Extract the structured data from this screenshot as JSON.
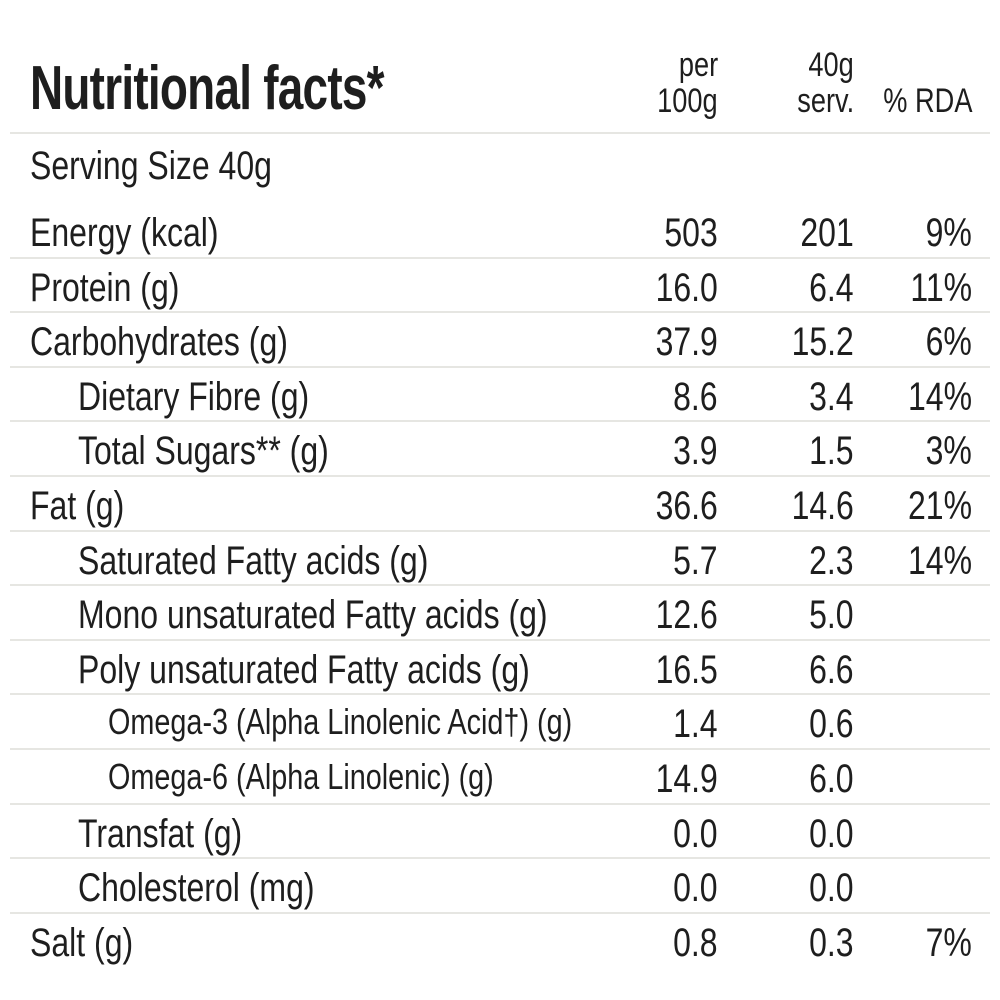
{
  "title": "Nutritional facts*",
  "columns": {
    "per100_line1": "per",
    "per100_line2": "100g",
    "serv_line1": "40g",
    "serv_line2": "serv.",
    "rda": "% RDA"
  },
  "serving_size": "Serving Size 40g",
  "rows": [
    {
      "label": "Energy (kcal)",
      "indent": 0,
      "per100g": "503",
      "per_serving": "201",
      "rda": "9%"
    },
    {
      "label": "Protein (g)",
      "indent": 0,
      "per100g": "16.0",
      "per_serving": "6.4",
      "rda": "11%"
    },
    {
      "label": "Carbohydrates (g)",
      "indent": 0,
      "per100g": "37.9",
      "per_serving": "15.2",
      "rda": "6%"
    },
    {
      "label": "Dietary Fibre (g)",
      "indent": 1,
      "per100g": "8.6",
      "per_serving": "3.4",
      "rda": "14%"
    },
    {
      "label": "Total Sugars** (g)",
      "indent": 1,
      "per100g": "3.9",
      "per_serving": "1.5",
      "rda": "3%"
    },
    {
      "label": "Fat (g)",
      "indent": 0,
      "per100g": "36.6",
      "per_serving": "14.6",
      "rda": "21%"
    },
    {
      "label": "Saturated Fatty acids (g)",
      "indent": 1,
      "per100g": "5.7",
      "per_serving": "2.3",
      "rda": "14%"
    },
    {
      "label": "Mono unsaturated Fatty acids (g)",
      "indent": 1,
      "per100g": "12.6",
      "per_serving": "5.0",
      "rda": ""
    },
    {
      "label": "Poly unsaturated Fatty acids (g)",
      "indent": 1,
      "per100g": "16.5",
      "per_serving": "6.6",
      "rda": ""
    },
    {
      "label": "Omega-3 (Alpha Linolenic Acid†) (g)",
      "indent": 2,
      "per100g": "1.4",
      "per_serving": "0.6",
      "rda": ""
    },
    {
      "label": "Omega-6 (Alpha Linolenic) (g)",
      "indent": 2,
      "per100g": "14.9",
      "per_serving": "6.0",
      "rda": ""
    },
    {
      "label": "Transfat (g)",
      "indent": 1,
      "per100g": "0.0",
      "per_serving": "0.0",
      "rda": ""
    },
    {
      "label": "Cholesterol (mg)",
      "indent": 1,
      "per100g": "0.0",
      "per_serving": "0.0",
      "rda": ""
    },
    {
      "label": "Salt (g)",
      "indent": 0,
      "per100g": "0.8",
      "per_serving": "0.3",
      "rda": "7%"
    }
  ]
}
